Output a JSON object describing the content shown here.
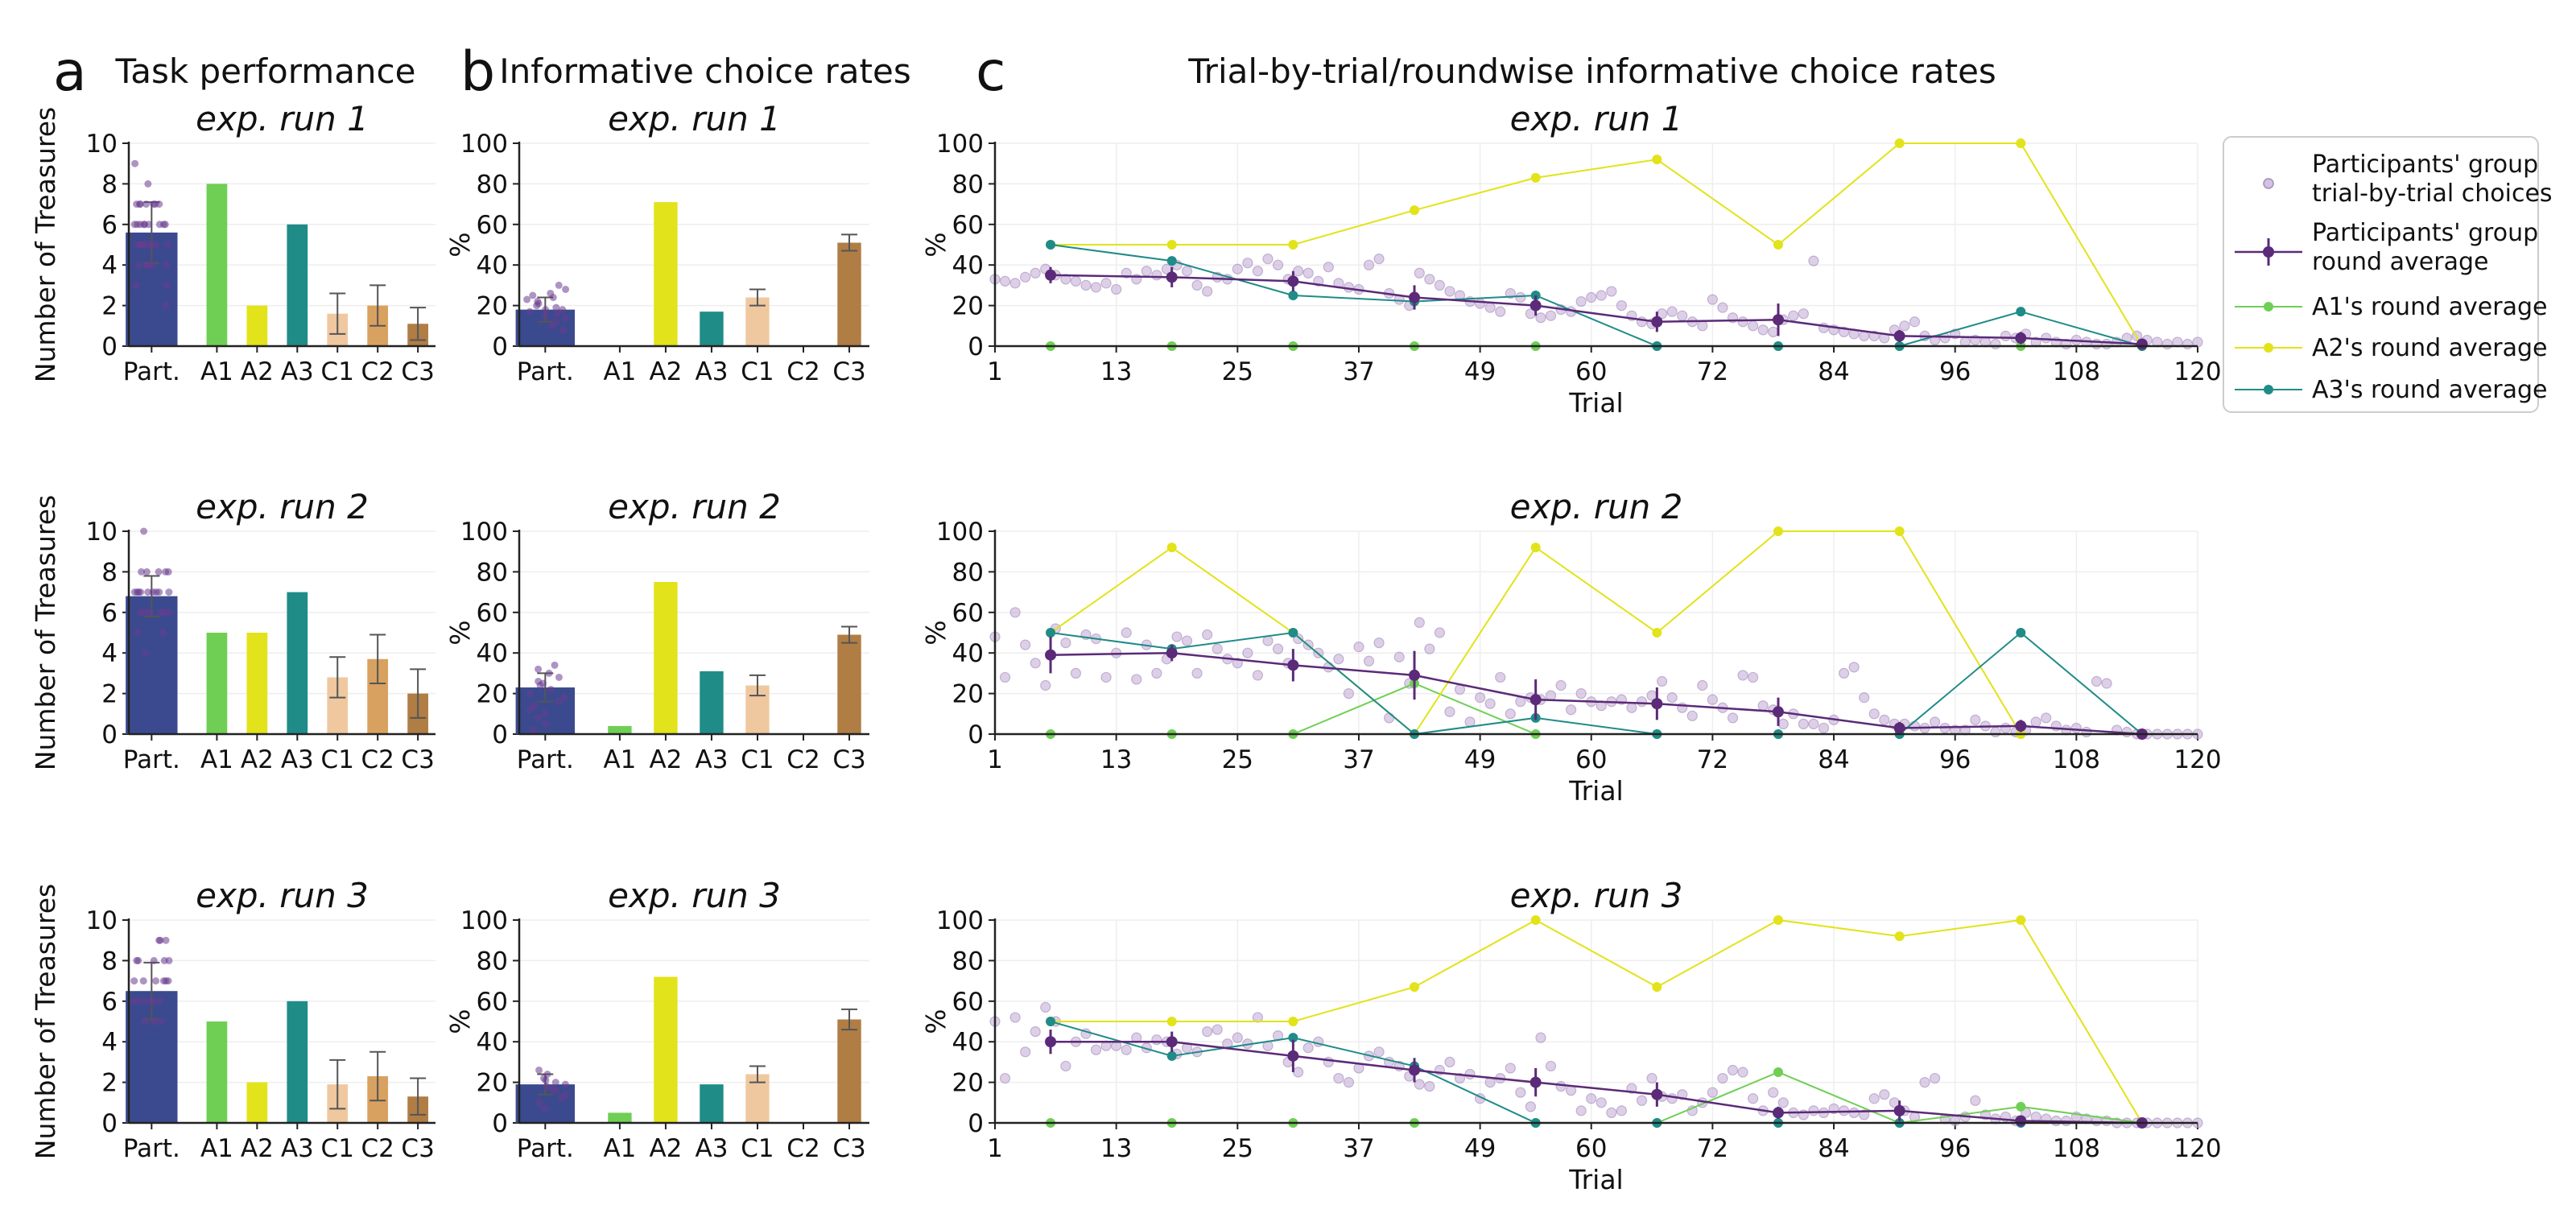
{
  "panel_letters": [
    "a",
    "b",
    "c"
  ],
  "panel_titles": [
    "Task performance",
    "Informative choice rates",
    "Trial-by-trial/roundwise informative choice rates"
  ],
  "run_titles": [
    "exp. run 1",
    "exp. run 2",
    "exp. run 3"
  ],
  "colors": {
    "participants": "#3b4a8f",
    "participants_dark": "#27306a",
    "participant_dots": "#6a3d8f",
    "A1": "#6fcf55",
    "A2": "#e2e31a",
    "A3": "#1f8c88",
    "C1": "#efc8a0",
    "C2": "#d9a160",
    "C3": "#b07d45",
    "trial_dots": "#c3a8d6",
    "round_avg": "#5b2a78"
  },
  "legend": {
    "entries": [
      {
        "key": "trial",
        "label": "Participants' group\ntrial-by-trial choices"
      },
      {
        "key": "round",
        "label": "Participants' group\nround average"
      },
      {
        "key": "A1",
        "label": "A1's round average"
      },
      {
        "key": "A2",
        "label": "A2's round average"
      },
      {
        "key": "A3",
        "label": "A3's round average"
      }
    ]
  },
  "chart_data": [
    {
      "type": "bar",
      "title": "exp. run 1",
      "ylabel": "Number of Treasures",
      "categories": [
        "Part.",
        "A1",
        "A2",
        "A3",
        "C1",
        "C2",
        "C3"
      ],
      "values": [
        5.6,
        8,
        2,
        6,
        1.6,
        2.0,
        1.1
      ],
      "errors": [
        1.5,
        0,
        0,
        0,
        1.0,
        1.0,
        0.8
      ],
      "ylim": [
        0,
        10
      ],
      "yticks": [
        0,
        2,
        4,
        6,
        8,
        10
      ],
      "participant_points": [
        2,
        3,
        3,
        4,
        4,
        4,
        4,
        4,
        5,
        5,
        5,
        5,
        5,
        5,
        5,
        5,
        6,
        6,
        6,
        6,
        6,
        6,
        6,
        6,
        6,
        7,
        7,
        7,
        7,
        7,
        7,
        7,
        8,
        9
      ]
    },
    {
      "type": "bar",
      "title": "exp. run 1",
      "ylabel": "%",
      "categories": [
        "Part.",
        "A1",
        "A2",
        "A3",
        "C1",
        "C2",
        "C3"
      ],
      "values": [
        18,
        0,
        71,
        17,
        24,
        0,
        51
      ],
      "errors": [
        6,
        0,
        0,
        0,
        4,
        0,
        4
      ],
      "ylim": [
        0,
        100
      ],
      "yticks": [
        0,
        20,
        40,
        60,
        80,
        100
      ],
      "participant_points": [
        8,
        10,
        12,
        14,
        15,
        16,
        17,
        18,
        18,
        19,
        20,
        21,
        22,
        23,
        24,
        25,
        26,
        28,
        30
      ]
    },
    {
      "type": "line",
      "title": "exp. run 1",
      "xlabel": "Trial",
      "ylabel": "%",
      "xlim": [
        1,
        120
      ],
      "ylim": [
        0,
        100
      ],
      "xticks": [
        1,
        13,
        25,
        37,
        49,
        60,
        72,
        84,
        96,
        108,
        120
      ],
      "yticks": [
        0,
        20,
        40,
        60,
        80,
        100
      ],
      "trial_choices": [
        33,
        32,
        31,
        34,
        36,
        38,
        35,
        33,
        32,
        30,
        29,
        31,
        28,
        36,
        33,
        37,
        35,
        38,
        40,
        37,
        30,
        27,
        34,
        33,
        38,
        41,
        37,
        43,
        40,
        33,
        37,
        36,
        32,
        39,
        31,
        29,
        28,
        40,
        43,
        26,
        23,
        20,
        36,
        33,
        30,
        27,
        25,
        22,
        21,
        19,
        17,
        26,
        24,
        16,
        14,
        15,
        18,
        17,
        22,
        24,
        25,
        27,
        20,
        15,
        12,
        11,
        16,
        17,
        15,
        12,
        10,
        23,
        19,
        14,
        12,
        10,
        8,
        7,
        13,
        15,
        16,
        42,
        9,
        8,
        7,
        6,
        5,
        5,
        4,
        8,
        10,
        12,
        5,
        3,
        4,
        6,
        2,
        3,
        2,
        1,
        5,
        4,
        6,
        2,
        4,
        2,
        1,
        3,
        2,
        1,
        1,
        2,
        4,
        5,
        3,
        2,
        1,
        2,
        1,
        2
      ],
      "round_x": [
        6.5,
        18.5,
        30.5,
        42.5,
        54.5,
        66.5,
        78.5,
        90.5,
        102.5,
        114.5
      ],
      "series": [
        {
          "name": "Participants' group round average",
          "values": [
            35,
            34,
            32,
            24,
            20,
            12,
            13,
            5,
            4,
            1
          ],
          "errors": [
            4,
            5,
            5,
            6,
            5,
            5,
            8,
            3,
            3,
            1
          ]
        },
        {
          "name": "A1's round average",
          "values": [
            0,
            0,
            0,
            0,
            0,
            0,
            0,
            0,
            0,
            0
          ]
        },
        {
          "name": "A2's round average",
          "values": [
            50,
            50,
            50,
            67,
            83,
            92,
            50,
            100,
            100,
            0
          ]
        },
        {
          "name": "A3's round average",
          "values": [
            50,
            42,
            25,
            22,
            25,
            0,
            0,
            0,
            17,
            0
          ]
        }
      ]
    },
    {
      "type": "bar",
      "title": "exp. run 2",
      "ylabel": "Number of Treasures",
      "categories": [
        "Part.",
        "A1",
        "A2",
        "A3",
        "C1",
        "C2",
        "C3"
      ],
      "values": [
        6.8,
        5,
        5,
        7,
        2.8,
        3.7,
        2.0
      ],
      "errors": [
        1.0,
        0,
        0,
        0,
        1.0,
        1.2,
        1.2
      ],
      "ylim": [
        0,
        10
      ],
      "yticks": [
        0,
        2,
        4,
        6,
        8,
        10
      ],
      "participant_points": [
        4,
        5,
        5,
        6,
        6,
        6,
        6,
        6,
        6,
        7,
        7,
        7,
        7,
        7,
        7,
        7,
        7,
        7,
        8,
        8,
        8,
        8,
        8,
        10
      ]
    },
    {
      "type": "bar",
      "title": "exp. run 2",
      "ylabel": "%",
      "categories": [
        "Part.",
        "A1",
        "A2",
        "A3",
        "C1",
        "C2",
        "C3"
      ],
      "values": [
        23,
        4,
        75,
        31,
        24,
        0,
        49
      ],
      "errors": [
        7,
        0,
        0,
        0,
        5,
        0,
        4
      ],
      "ylim": [
        0,
        100
      ],
      "yticks": [
        0,
        20,
        40,
        60,
        80,
        100
      ],
      "participant_points": [
        2,
        5,
        8,
        10,
        12,
        14,
        16,
        18,
        20,
        22,
        24,
        25,
        26,
        28,
        30,
        32,
        34
      ]
    },
    {
      "type": "line",
      "title": "exp. run 2",
      "xlabel": "Trial",
      "ylabel": "%",
      "xlim": [
        1,
        120
      ],
      "ylim": [
        0,
        100
      ],
      "xticks": [
        1,
        13,
        25,
        37,
        49,
        60,
        72,
        84,
        96,
        108,
        120
      ],
      "yticks": [
        0,
        20,
        40,
        60,
        80,
        100
      ],
      "trial_choices": [
        48,
        28,
        60,
        44,
        35,
        24,
        52,
        45,
        30,
        49,
        47,
        28,
        40,
        50,
        27,
        44,
        30,
        37,
        48,
        46,
        30,
        49,
        42,
        37,
        35,
        40,
        29,
        46,
        42,
        35,
        47,
        44,
        40,
        33,
        37,
        20,
        43,
        36,
        45,
        8,
        38,
        25,
        55,
        42,
        50,
        11,
        22,
        6,
        18,
        15,
        28,
        10,
        16,
        18,
        17,
        19,
        24,
        12,
        20,
        16,
        14,
        16,
        17,
        13,
        16,
        19,
        26,
        18,
        13,
        9,
        24,
        17,
        13,
        8,
        29,
        28,
        14,
        12,
        5,
        10,
        5,
        5,
        3,
        7,
        30,
        33,
        18,
        10,
        7,
        5,
        5,
        4,
        3,
        6,
        3,
        2,
        2,
        7,
        4,
        1,
        3,
        1,
        2,
        6,
        8,
        4,
        2,
        3,
        1,
        26,
        25,
        2,
        1,
        0,
        0,
        0,
        0,
        0,
        0,
        0
      ],
      "round_x": [
        6.5,
        18.5,
        30.5,
        42.5,
        54.5,
        66.5,
        78.5,
        90.5,
        102.5,
        114.5
      ],
      "series": [
        {
          "name": "Participants' group round average",
          "values": [
            39,
            40,
            34,
            29,
            17,
            15,
            11,
            3,
            4,
            0
          ],
          "errors": [
            9,
            4,
            8,
            12,
            10,
            8,
            7,
            3,
            3,
            1
          ]
        },
        {
          "name": "A1's round average",
          "values": [
            0,
            0,
            0,
            25,
            0,
            0,
            0,
            0,
            0,
            0
          ]
        },
        {
          "name": "A2's round average",
          "values": [
            50,
            92,
            50,
            0,
            92,
            50,
            100,
            100,
            0,
            0
          ]
        },
        {
          "name": "A3's round average",
          "values": [
            50,
            42,
            50,
            0,
            8,
            0,
            0,
            0,
            50,
            0
          ]
        }
      ]
    },
    {
      "type": "bar",
      "title": "exp. run 3",
      "ylabel": "Number of Treasures",
      "categories": [
        "Part.",
        "A1",
        "A2",
        "A3",
        "C1",
        "C2",
        "C3"
      ],
      "values": [
        6.5,
        5,
        2,
        6,
        1.9,
        2.3,
        1.3
      ],
      "errors": [
        1.4,
        0,
        0,
        0,
        1.2,
        1.2,
        0.9
      ],
      "ylim": [
        0,
        10
      ],
      "yticks": [
        0,
        2,
        4,
        6,
        8,
        10
      ],
      "participant_points": [
        5,
        5,
        5,
        6,
        6,
        6,
        6,
        6,
        6,
        7,
        7,
        7,
        7,
        7,
        7,
        8,
        8,
        8,
        8,
        8,
        9,
        9,
        9
      ]
    },
    {
      "type": "bar",
      "title": "exp. run 3",
      "ylabel": "%",
      "categories": [
        "Part.",
        "A1",
        "A2",
        "A3",
        "C1",
        "C2",
        "C3"
      ],
      "values": [
        19,
        5,
        72,
        19,
        24,
        0,
        51
      ],
      "errors": [
        5,
        0,
        0,
        0,
        4,
        0,
        5
      ],
      "ylim": [
        0,
        100
      ],
      "yticks": [
        0,
        20,
        40,
        60,
        80,
        100
      ],
      "participant_points": [
        7,
        10,
        12,
        14,
        16,
        17,
        18,
        19,
        20,
        21,
        22,
        24,
        26
      ]
    },
    {
      "type": "line",
      "title": "exp. run 3",
      "xlabel": "Trial",
      "ylabel": "%",
      "xlim": [
        1,
        120
      ],
      "ylim": [
        0,
        100
      ],
      "xticks": [
        1,
        13,
        25,
        37,
        49,
        60,
        72,
        84,
        96,
        108,
        120
      ],
      "yticks": [
        0,
        20,
        40,
        60,
        80,
        100
      ],
      "trial_choices": [
        50,
        22,
        52,
        35,
        45,
        57,
        50,
        28,
        40,
        44,
        36,
        38,
        38,
        36,
        42,
        37,
        41,
        40,
        34,
        37,
        35,
        45,
        46,
        39,
        42,
        39,
        52,
        38,
        43,
        30,
        25,
        37,
        40,
        30,
        22,
        20,
        27,
        33,
        35,
        30,
        28,
        23,
        19,
        18,
        26,
        30,
        22,
        24,
        12,
        20,
        22,
        27,
        15,
        8,
        42,
        28,
        18,
        16,
        6,
        12,
        10,
        5,
        6,
        17,
        11,
        22,
        13,
        12,
        14,
        6,
        10,
        15,
        22,
        26,
        25,
        12,
        6,
        15,
        10,
        5,
        4,
        6,
        5,
        7,
        6,
        5,
        4,
        12,
        14,
        10,
        6,
        3,
        20,
        22,
        2,
        1,
        3,
        11,
        4,
        2,
        3,
        1,
        5,
        3,
        2,
        1,
        1,
        3,
        2,
        1,
        1,
        0,
        0,
        0,
        0,
        0,
        0,
        0,
        0,
        0
      ],
      "round_x": [
        6.5,
        18.5,
        30.5,
        42.5,
        54.5,
        66.5,
        78.5,
        90.5,
        102.5,
        114.5
      ],
      "series": [
        {
          "name": "Participants' group round average",
          "values": [
            40,
            40,
            33,
            26,
            20,
            14,
            5,
            6,
            1,
            0
          ],
          "errors": [
            6,
            5,
            8,
            6,
            7,
            6,
            3,
            5,
            2,
            1
          ]
        },
        {
          "name": "A1's round average",
          "values": [
            0,
            0,
            0,
            0,
            0,
            0,
            25,
            0,
            8,
            0
          ]
        },
        {
          "name": "A2's round average",
          "values": [
            50,
            50,
            50,
            67,
            100,
            67,
            100,
            92,
            100,
            0
          ]
        },
        {
          "name": "A3's round average",
          "values": [
            50,
            33,
            42,
            28,
            0,
            0,
            0,
            0,
            0,
            0
          ]
        }
      ]
    }
  ]
}
